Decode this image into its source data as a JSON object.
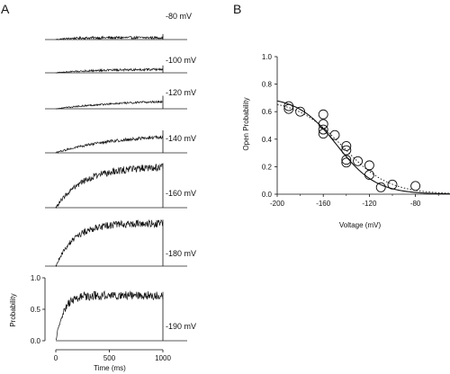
{
  "panels": {
    "a": "A",
    "b": "B"
  },
  "chart_data": [
    {
      "type": "line",
      "panel": "A",
      "xlabel": "Time (ms)",
      "ylabel": "Probability",
      "xticks": [
        "0",
        "500",
        "1000"
      ],
      "yticks": [
        "0.0",
        "0.5",
        "1.0"
      ],
      "xlim": [
        0,
        1000
      ],
      "ylim": [
        0,
        1.0
      ],
      "series": [
        {
          "name": "-80 mV",
          "plateau": 0.03,
          "tau_ms": 150,
          "noise": 0.02
        },
        {
          "name": "-100 mV",
          "plateau": 0.06,
          "tau_ms": 400,
          "noise": 0.02
        },
        {
          "name": "-120 mV",
          "plateau": 0.15,
          "tau_ms": 700,
          "noise": 0.02
        },
        {
          "name": "-140 mV",
          "plateau": 0.3,
          "tau_ms": 550,
          "noise": 0.03
        },
        {
          "name": "-160 mV",
          "plateau": 0.65,
          "tau_ms": 250,
          "noise": 0.06
        },
        {
          "name": "-180 mV",
          "plateau": 0.68,
          "tau_ms": 170,
          "noise": 0.06
        },
        {
          "name": "-190 mV",
          "plateau": 0.72,
          "tau_ms": 70,
          "noise": 0.07
        }
      ]
    },
    {
      "type": "scatter",
      "panel": "B",
      "xlabel": "Voltage (mV)",
      "ylabel": "Open Probability",
      "xlim": [
        -200,
        -50
      ],
      "ylim": [
        0,
        1.0
      ],
      "xticks": [
        "-200",
        "-160",
        "-120",
        "-80"
      ],
      "yticks": [
        "0.0",
        "0.2",
        "0.4",
        "0.6",
        "0.8",
        "1.0"
      ],
      "points": [
        {
          "x": -190,
          "y": 0.64
        },
        {
          "x": -190,
          "y": 0.62
        },
        {
          "x": -180,
          "y": 0.6
        },
        {
          "x": -160,
          "y": 0.58
        },
        {
          "x": -160,
          "y": 0.51
        },
        {
          "x": -160,
          "y": 0.47
        },
        {
          "x": -160,
          "y": 0.44
        },
        {
          "x": -150,
          "y": 0.43
        },
        {
          "x": -140,
          "y": 0.35
        },
        {
          "x": -140,
          "y": 0.32
        },
        {
          "x": -140,
          "y": 0.25
        },
        {
          "x": -140,
          "y": 0.23
        },
        {
          "x": -130,
          "y": 0.24
        },
        {
          "x": -120,
          "y": 0.21
        },
        {
          "x": -120,
          "y": 0.14
        },
        {
          "x": -110,
          "y": 0.05
        },
        {
          "x": -100,
          "y": 0.07
        },
        {
          "x": -80,
          "y": 0.06
        }
      ],
      "fits": [
        {
          "style": "solid",
          "max": 0.71,
          "v_half": -148,
          "slope_mV": 17
        },
        {
          "style": "dotted",
          "max": 0.69,
          "v_half": -143,
          "slope_mV": 20
        }
      ]
    }
  ]
}
